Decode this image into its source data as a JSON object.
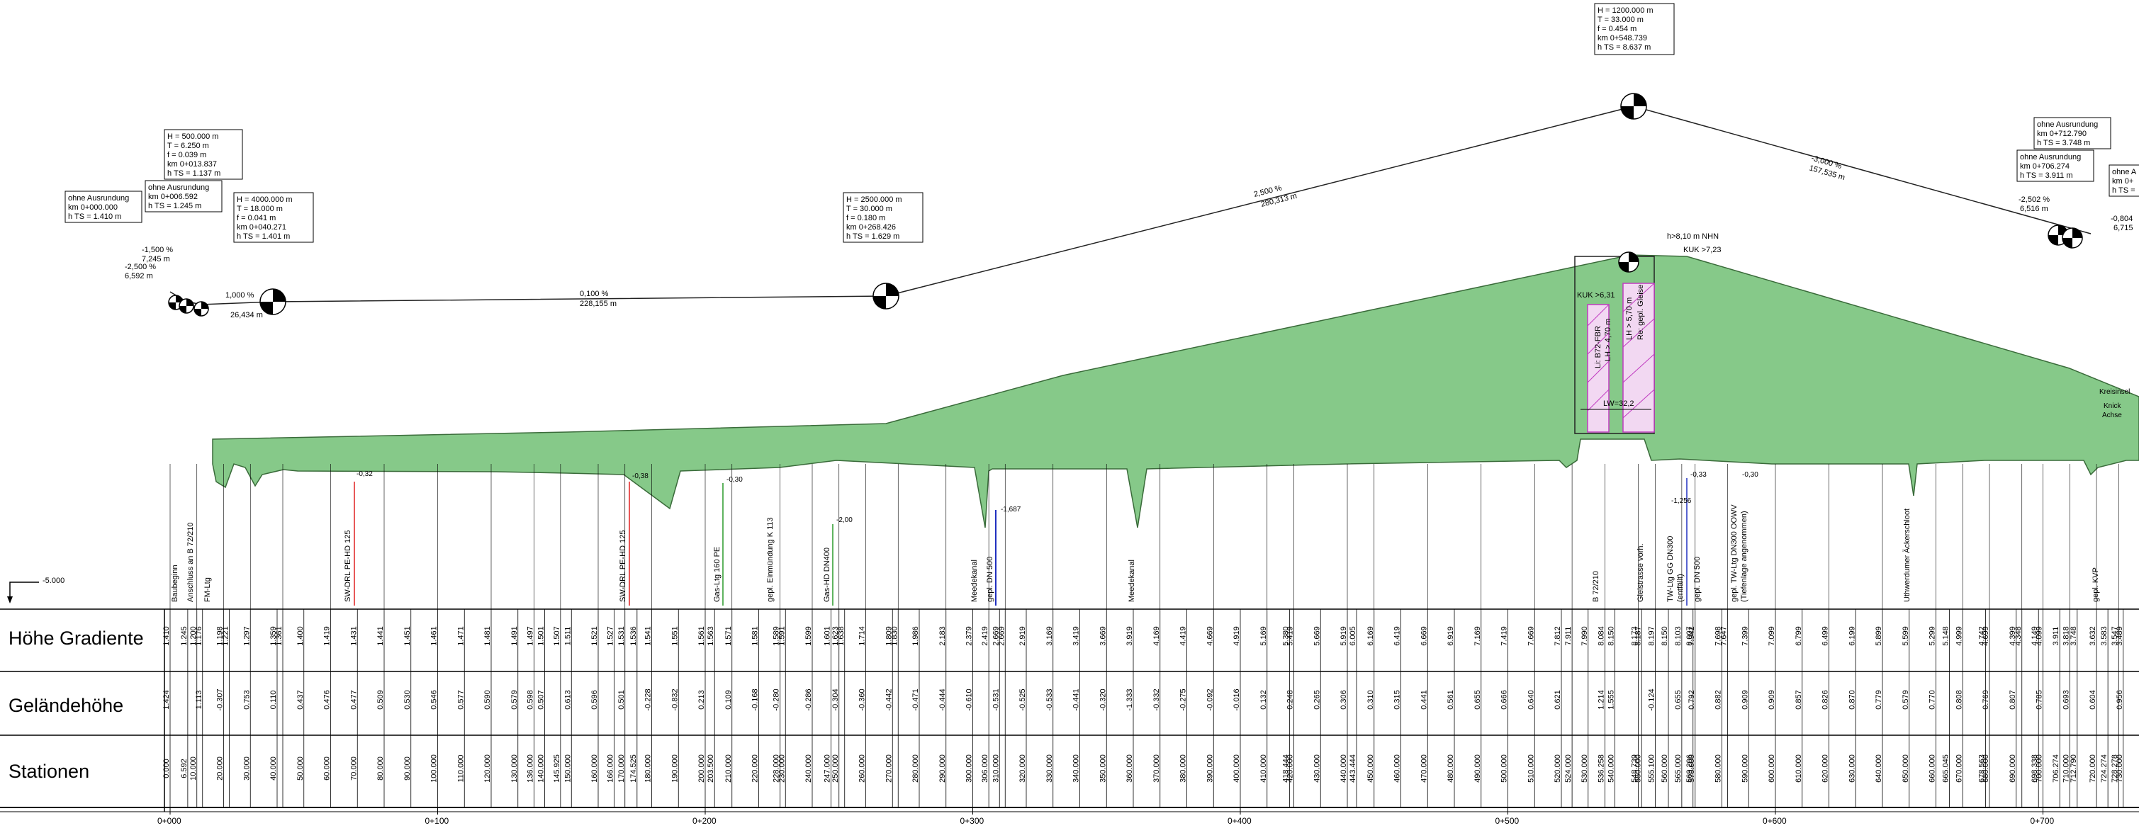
{
  "rows": {
    "hoehe_gradiente": "Höhe Gradiente",
    "gelaendehoehe": "Geländehöhe",
    "stationen": "Stationen"
  },
  "datum_label": "-5.000",
  "km_marks": [
    "0+000",
    "0+100",
    "0+200",
    "0+300",
    "0+400",
    "0+500",
    "0+600",
    "0+700"
  ],
  "colors": {
    "fill": "#86c989",
    "stroke": "#3a6b3a",
    "magenta": "#c03ac0",
    "red": "#e02020",
    "blue": "#2030c0",
    "green": "#2a9a2a"
  },
  "vertical_curves": [
    {
      "lines": [
        "H      = 500.000 m",
        "T      =    6.250 m",
        "f       =    0.039 m",
        "km      0+013.837",
        "h TS =     1.137 m"
      ]
    },
    {
      "lines": [
        "H   = 4000.000 m",
        "T   =    18.000 m",
        "f    =      0.041 m",
        "km      0+040.271",
        "h TS =      1.401 m"
      ]
    },
    {
      "lines": [
        "H   = 2500.000 m",
        "T   =    30.000 m",
        "f    =      0.180 m",
        "km      0+268.426",
        "h TS =      1.629 m"
      ]
    },
    {
      "lines": [
        "H   = 1200.000 m",
        "T   =    33.000 m",
        "f    =      0.454 m",
        "km      0+548.739",
        "h TS =      8.637 m"
      ]
    }
  ],
  "no_curve_boxes": [
    {
      "lines": [
        "ohne Ausrundung",
        "km  0+000.000",
        "h TS = 1.410 m"
      ]
    },
    {
      "lines": [
        "ohne Ausrundung",
        "km  0+006.592",
        "h TS = 1.245 m"
      ]
    },
    {
      "lines": [
        "ohne Ausrundung",
        "km  0+712.790",
        "h TS = 3.748 m"
      ]
    },
    {
      "lines": [
        "ohne Ausrundung",
        "km  0+706.274",
        "h TS = 3.911 m"
      ]
    },
    {
      "lines": [
        "ohne A",
        "km  0+",
        "h TS ="
      ]
    }
  ],
  "grade_labels": [
    {
      "pct": "-1,500 %",
      "len": "7,245 m"
    },
    {
      "pct": "-2,500 %",
      "len": "6,592 m"
    },
    {
      "pct": "1,000 %",
      "len": "26,434 m"
    },
    {
      "pct": "0,100 %",
      "len": "228,155 m"
    },
    {
      "pct": "2,500 %",
      "len": "280,313 m"
    },
    {
      "pct": "-3,000 %",
      "len": "157,535 m"
    },
    {
      "pct": "-2,502 %",
      "len": "6,516 m"
    },
    {
      "pct": "-0,804",
      "len": "6,715"
    }
  ],
  "bridge_labels": {
    "nhn": "h>8,10 m NHN",
    "kuk_right": "KUK >7,23",
    "kuk_left": "KUK >6,31",
    "li": "Li: B72-FBR",
    "lh1": "LH > 4,70 m",
    "lh2": "LH > 5,70 m",
    "re": "Re: gepl. Gleise",
    "lw": "LW=32,2"
  },
  "right_labels": {
    "kreisinsel": "Kreisinsel",
    "knick": "Knick",
    "achse": "Achse"
  },
  "utility_depths": [
    "-0,32",
    "-0,38",
    "-0,30",
    "-2,00",
    "-1,687",
    "-0,33",
    "-1,256",
    "-0,30"
  ],
  "crossings": [
    "Baubeginn",
    "Anschluss an B 72/210",
    "FM-Ltg",
    "SW-DRL PE-HD 125",
    "SW-DRL PE-HD 125",
    "Gas-Ltg 160 PE",
    "gepl. Einmündung K 113",
    "Gas-HD DN400",
    "Meedekanal",
    "gepl. DN 500",
    "Meedekanal",
    "B 72/210",
    "Gleistrasse vorh.",
    "TW-Ltg GG DN300",
    "(entfällt)",
    "gepl. DN 500",
    "gepl. TW-Ltg DN300 OOWV",
    "(Tiefenlage angenommen)",
    "Uthwerdumer Äckerschloot",
    "gepl. KVP"
  ],
  "table": [
    {
      "st": "0.000",
      "g": "1.410",
      "t": "1.424"
    },
    {
      "st": "6.592",
      "g": "1.245",
      "t": ""
    },
    {
      "st": "10.000",
      "g": "1.200",
      "t": ""
    },
    {
      "st": "",
      "g": "1.176",
      "t": "1.113"
    },
    {
      "st": "20.000",
      "g": "1.198",
      "t": "-0.307"
    },
    {
      "st": "",
      "g": "1.221",
      "t": ""
    },
    {
      "st": "30.000",
      "g": "1.297",
      "t": "0.753"
    },
    {
      "st": "40.000",
      "g": "1.359",
      "t": "0.110"
    },
    {
      "st": "",
      "g": "1.361",
      "t": ""
    },
    {
      "st": "50.000",
      "g": "1.400",
      "t": "0.437"
    },
    {
      "st": "60.000",
      "g": "1.419",
      "t": "0.476"
    },
    {
      "st": "70.000",
      "g": "1.431",
      "t": "0.477"
    },
    {
      "st": "80.000",
      "g": "1.441",
      "t": "0.509"
    },
    {
      "st": "90.000",
      "g": "1.451",
      "t": "0.530"
    },
    {
      "st": "100.000",
      "g": "1.461",
      "t": "0.546"
    },
    {
      "st": "110.000",
      "g": "1.471",
      "t": "0.577"
    },
    {
      "st": "120.000",
      "g": "1.481",
      "t": "0.590"
    },
    {
      "st": "130.000",
      "g": "1.491",
      "t": "0.579"
    },
    {
      "st": "136.000",
      "g": "1.497",
      "t": "0.598"
    },
    {
      "st": "140.000",
      "g": "1.501",
      "t": "0.507"
    },
    {
      "st": "145.925",
      "g": "1.507",
      "t": ""
    },
    {
      "st": "150.000",
      "g": "1.511",
      "t": "0.613"
    },
    {
      "st": "160.000",
      "g": "1.521",
      "t": "0.596"
    },
    {
      "st": "166.000",
      "g": "1.527",
      "t": ""
    },
    {
      "st": "170.000",
      "g": "1.531",
      "t": "0.501"
    },
    {
      "st": "174.525",
      "g": "1.536",
      "t": ""
    },
    {
      "st": "180.000",
      "g": "1.541",
      "t": "-0.228"
    },
    {
      "st": "190.000",
      "g": "1.551",
      "t": "-0.832"
    },
    {
      "st": "200.000",
      "g": "1.561",
      "t": "0.213"
    },
    {
      "st": "203.500",
      "g": "1.563",
      "t": ""
    },
    {
      "st": "210.000",
      "g": "1.571",
      "t": "0.109"
    },
    {
      "st": "220.000",
      "g": "1.581",
      "t": "-0.168"
    },
    {
      "st": "228.000",
      "g": "1.589",
      "t": "-0.280"
    },
    {
      "st": "230.000",
      "g": "1.591",
      "t": ""
    },
    {
      "st": "240.000",
      "g": "1.599",
      "t": "-0.286"
    },
    {
      "st": "247.000",
      "g": "1.601",
      "t": ""
    },
    {
      "st": "250.000",
      "g": "1.623",
      "t": "-0.304"
    },
    {
      "st": "",
      "g": "1.638",
      "t": ""
    },
    {
      "st": "260.000",
      "g": "1.714",
      "t": "-0.360"
    },
    {
      "st": "270.000",
      "g": "1.809",
      "t": "-0.442"
    },
    {
      "st": "",
      "g": "1.830",
      "t": ""
    },
    {
      "st": "280.000",
      "g": "1.986",
      "t": "-0.471"
    },
    {
      "st": "290.000",
      "g": "2.183",
      "t": "-0.444"
    },
    {
      "st": "300.000",
      "g": "2.379",
      "t": "-0.610"
    },
    {
      "st": "306.000",
      "g": "2.419",
      "t": ""
    },
    {
      "st": "310.000",
      "g": "2.669",
      "t": "-0.531"
    },
    {
      "st": "",
      "g": "2.669",
      "t": ""
    },
    {
      "st": "320.000",
      "g": "2.919",
      "t": "-0.525"
    },
    {
      "st": "330.000",
      "g": "3.169",
      "t": "-0.533"
    },
    {
      "st": "340.000",
      "g": "3.419",
      "t": "-0.441"
    },
    {
      "st": "350.000",
      "g": "3.669",
      "t": "-0.320"
    },
    {
      "st": "360.000",
      "g": "3.919",
      "t": "-1.333"
    },
    {
      "st": "370.000",
      "g": "4.169",
      "t": "-0.332"
    },
    {
      "st": "380.000",
      "g": "4.419",
      "t": "-0.275"
    },
    {
      "st": "390.000",
      "g": "4.669",
      "t": "-0.092"
    },
    {
      "st": "400.000",
      "g": "4.919",
      "t": "-0.016"
    },
    {
      "st": "410.000",
      "g": "5.169",
      "t": "0.132"
    },
    {
      "st": "418.444",
      "g": "5.380",
      "t": ""
    },
    {
      "st": "420.000",
      "g": "5.419",
      "t": "0.248"
    },
    {
      "st": "430.000",
      "g": "5.669",
      "t": "0.265"
    },
    {
      "st": "440.000",
      "g": "5.919",
      "t": "0.306"
    },
    {
      "st": "443.444",
      "g": "6.005",
      "t": ""
    },
    {
      "st": "450.000",
      "g": "6.169",
      "t": "0.310"
    },
    {
      "st": "460.000",
      "g": "6.419",
      "t": "0.315"
    },
    {
      "st": "470.000",
      "g": "6.669",
      "t": "0.441"
    },
    {
      "st": "480.000",
      "g": "6.919",
      "t": "0.561"
    },
    {
      "st": "490.000",
      "g": "7.169",
      "t": "0.655"
    },
    {
      "st": "500.000",
      "g": "7.419",
      "t": "0.666"
    },
    {
      "st": "510.000",
      "g": "7.669",
      "t": "0.640"
    },
    {
      "st": "520.000",
      "g": "7.812",
      "t": "0.621"
    },
    {
      "st": "524.000",
      "g": "7.911",
      "t": ""
    },
    {
      "st": "530.000",
      "g": "7.990",
      "t": ""
    },
    {
      "st": "536.258",
      "g": "8.084",
      "t": "1.214"
    },
    {
      "st": "540.000",
      "g": "8.150",
      "t": "1.555"
    },
    {
      "st": "548.739",
      "g": "8.173",
      "t": ""
    },
    {
      "st": "550.000",
      "g": "8.187",
      "t": ""
    },
    {
      "st": "555.100",
      "g": "8.197",
      "t": "-0.124"
    },
    {
      "st": "560.000",
      "g": "8.150",
      "t": ""
    },
    {
      "st": "565.000",
      "g": "8.103",
      "t": "0.655"
    },
    {
      "st": "569.206",
      "g": "8.007",
      "t": ""
    },
    {
      "st": "570.000",
      "g": "7.942",
      "t": "0.792"
    },
    {
      "st": "580.000",
      "g": "7.698",
      "t": "0.882"
    },
    {
      "st": "",
      "g": "7.647",
      "t": ""
    },
    {
      "st": "590.000",
      "g": "7.399",
      "t": "0.909"
    },
    {
      "st": "600.000",
      "g": "7.099",
      "t": "0.909"
    },
    {
      "st": "610.000",
      "g": "6.799",
      "t": "0.857"
    },
    {
      "st": "620.000",
      "g": "6.499",
      "t": "0.826"
    },
    {
      "st": "630.000",
      "g": "6.199",
      "t": "0.870"
    },
    {
      "st": "640.000",
      "g": "5.899",
      "t": "0.779"
    },
    {
      "st": "650.000",
      "g": "5.599",
      "t": "0.579"
    },
    {
      "st": "660.000",
      "g": "5.299",
      "t": "0.770"
    },
    {
      "st": "665.045",
      "g": "5.148",
      "t": ""
    },
    {
      "st": "670.000",
      "g": "4.999",
      "t": "0.808"
    },
    {
      "st": "678.563",
      "g": "4.742",
      "t": ""
    },
    {
      "st": "680.000",
      "g": "4.699",
      "t": "0.769"
    },
    {
      "st": "690.000",
      "g": "4.399",
      "t": "0.807"
    },
    {
      "st": "",
      "g": "4.348",
      "t": ""
    },
    {
      "st": "698.338",
      "g": "4.149",
      "t": ""
    },
    {
      "st": "700.000",
      "g": "4.099",
      "t": "0.785"
    },
    {
      "st": "706.274",
      "g": "3.911",
      "t": ""
    },
    {
      "st": "710.000",
      "g": "3.818",
      "t": "0.693"
    },
    {
      "st": "712.790",
      "g": "3.748",
      "t": ""
    },
    {
      "st": "720.000",
      "g": "3.632",
      "t": "0.604"
    },
    {
      "st": "724.274",
      "g": "3.583",
      "t": ""
    },
    {
      "st": "728.278",
      "g": "3.547",
      "t": ""
    },
    {
      "st": "730.000",
      "g": "3.489",
      "t": "0.956"
    }
  ]
}
